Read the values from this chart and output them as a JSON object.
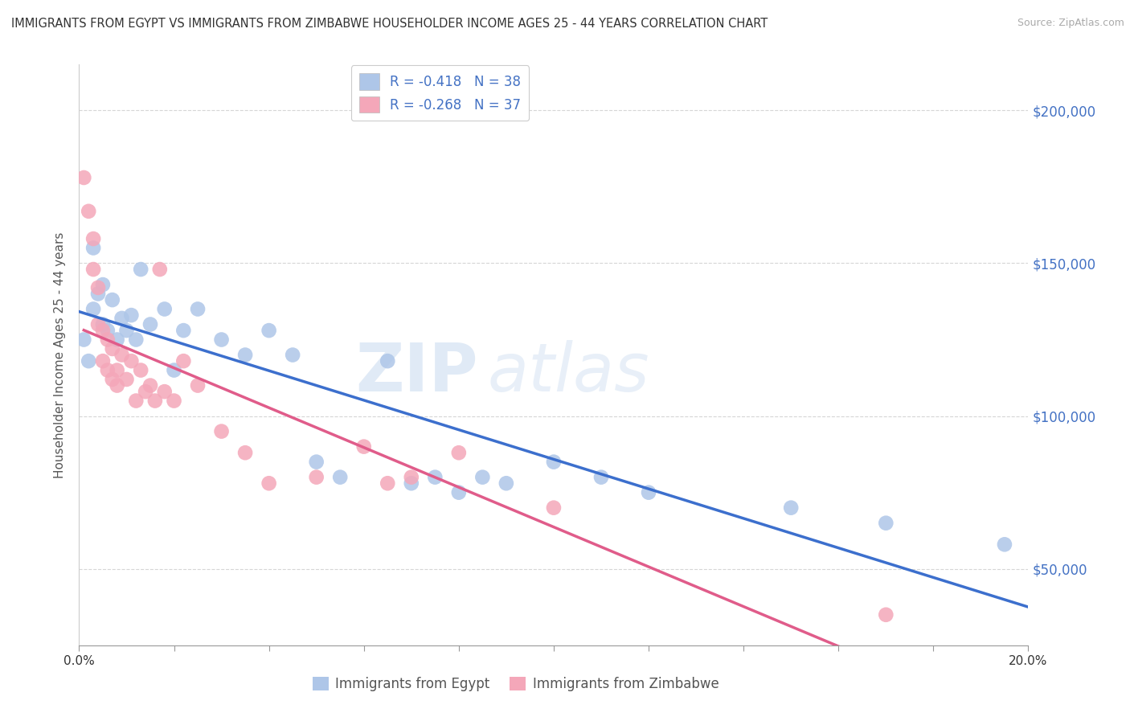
{
  "title": "IMMIGRANTS FROM EGYPT VS IMMIGRANTS FROM ZIMBABWE HOUSEHOLDER INCOME AGES 25 - 44 YEARS CORRELATION CHART",
  "source": "Source: ZipAtlas.com",
  "ylabel": "Householder Income Ages 25 - 44 years",
  "xlim": [
    0.0,
    0.2
  ],
  "ylim": [
    25000,
    215000
  ],
  "yticks": [
    50000,
    100000,
    150000,
    200000
  ],
  "ytick_labels": [
    "$50,000",
    "$100,000",
    "$150,000",
    "$200,000"
  ],
  "egypt_color": "#aec6e8",
  "zimbabwe_color": "#f4a7b9",
  "egypt_line_color": "#3c6fcd",
  "zimbabwe_line_color": "#e05c8a",
  "egypt_scatter_x": [
    0.001,
    0.002,
    0.003,
    0.003,
    0.004,
    0.005,
    0.005,
    0.006,
    0.007,
    0.008,
    0.009,
    0.01,
    0.011,
    0.012,
    0.013,
    0.015,
    0.018,
    0.02,
    0.022,
    0.025,
    0.03,
    0.035,
    0.04,
    0.045,
    0.05,
    0.055,
    0.065,
    0.07,
    0.075,
    0.08,
    0.085,
    0.09,
    0.1,
    0.11,
    0.12,
    0.15,
    0.17,
    0.195
  ],
  "egypt_scatter_y": [
    125000,
    118000,
    135000,
    155000,
    140000,
    130000,
    143000,
    128000,
    138000,
    125000,
    132000,
    128000,
    133000,
    125000,
    148000,
    130000,
    135000,
    115000,
    128000,
    135000,
    125000,
    120000,
    128000,
    120000,
    85000,
    80000,
    118000,
    78000,
    80000,
    75000,
    80000,
    78000,
    85000,
    80000,
    75000,
    70000,
    65000,
    58000
  ],
  "zimbabwe_scatter_x": [
    0.001,
    0.002,
    0.003,
    0.003,
    0.004,
    0.004,
    0.005,
    0.005,
    0.006,
    0.006,
    0.007,
    0.007,
    0.008,
    0.008,
    0.009,
    0.01,
    0.011,
    0.012,
    0.013,
    0.014,
    0.015,
    0.016,
    0.017,
    0.018,
    0.02,
    0.022,
    0.025,
    0.03,
    0.035,
    0.04,
    0.05,
    0.06,
    0.065,
    0.07,
    0.08,
    0.1,
    0.17
  ],
  "zimbabwe_scatter_y": [
    178000,
    167000,
    158000,
    148000,
    142000,
    130000,
    118000,
    128000,
    115000,
    125000,
    112000,
    122000,
    110000,
    115000,
    120000,
    112000,
    118000,
    105000,
    115000,
    108000,
    110000,
    105000,
    148000,
    108000,
    105000,
    118000,
    110000,
    95000,
    88000,
    78000,
    80000,
    90000,
    78000,
    80000,
    88000,
    70000,
    35000
  ],
  "background_color": "#ffffff",
  "grid_color": "#cccccc",
  "watermark_zip": "ZIP",
  "watermark_atlas": "atlas",
  "legend_egypt_label": "R = -0.418   N = 38",
  "legend_zimbabwe_label": "R = -0.268   N = 37",
  "bottom_legend_egypt": "Immigrants from Egypt",
  "bottom_legend_zimbabwe": "Immigrants from Zimbabwe"
}
